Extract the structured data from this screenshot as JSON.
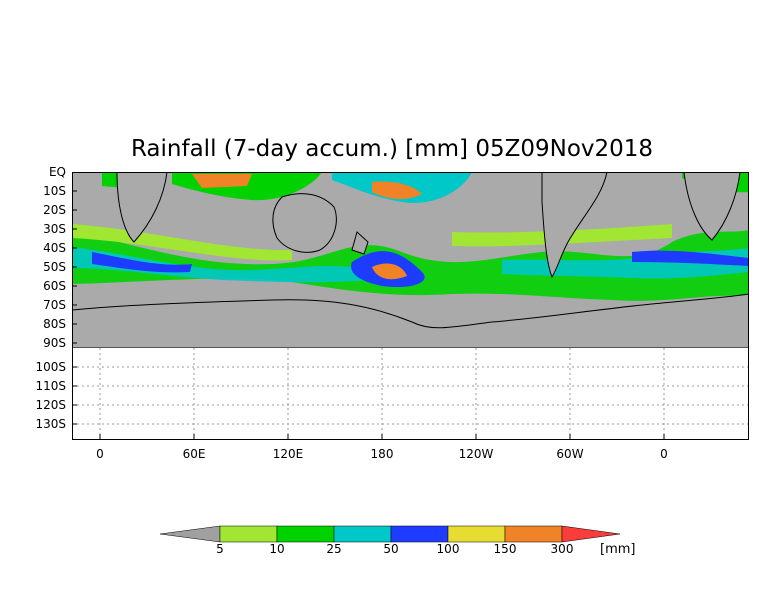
{
  "title": "Rainfall (7-day accum.) [mm] 05Z09Nov2018",
  "y_axis_labels": [
    "EQ",
    "10S",
    "20S",
    "30S",
    "40S",
    "50S",
    "60S",
    "70S",
    "80S",
    "90S",
    "100S",
    "110S",
    "120S",
    "130S"
  ],
  "x_axis_labels": [
    "0",
    "60E",
    "120E",
    "180",
    "120W",
    "60W",
    "0"
  ],
  "legend": {
    "bins": [
      {
        "label": "5",
        "color": "#a0e632"
      },
      {
        "label": "10",
        "color": "#00d200"
      },
      {
        "label": "25",
        "color": "#00c8c8"
      },
      {
        "label": "50",
        "color": "#1e3cff"
      },
      {
        "label": "100",
        "color": "#e6dc32"
      },
      {
        "label": "150",
        "color": "#f08228"
      },
      {
        "label": "300",
        "color": "#fa3c3c"
      }
    ],
    "below_color": "#a0a0a0",
    "unit": "[mm]"
  },
  "colors": {
    "land_ocean_nodata": "#aaaaaa",
    "coastline": "#000000"
  }
}
